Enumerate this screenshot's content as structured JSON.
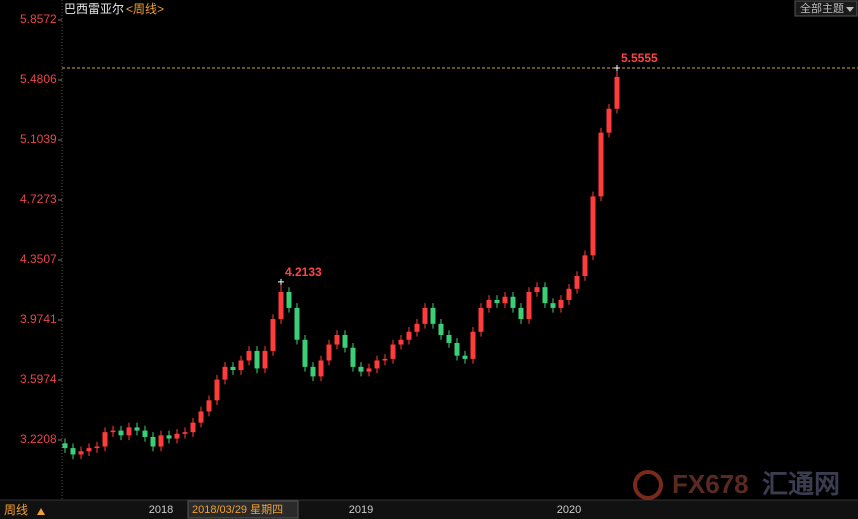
{
  "chart_data": {
    "type": "candlestick",
    "title": "巴西雷亚尔",
    "subtitle": "<周线>",
    "button": "全部主题",
    "period_label": "周线",
    "cursor_label": "2018/03/29 星期四",
    "watermark": [
      "FX678",
      "汇通网"
    ],
    "up_color": "#ff3c3c",
    "down_color": "#3ccf78",
    "categories": [
      null,
      null,
      null,
      null,
      null,
      null,
      null,
      null,
      null,
      null,
      null,
      null,
      "2018",
      null,
      null,
      null,
      null,
      null,
      null,
      null,
      null,
      null,
      null,
      null,
      null,
      null,
      null,
      null,
      null,
      null,
      null,
      null,
      null,
      null,
      null,
      null,
      null,
      "2019",
      null,
      null,
      null,
      null,
      null,
      null,
      null,
      null,
      null,
      null,
      null,
      null,
      null,
      null,
      null,
      null,
      null,
      null,
      null,
      null,
      null,
      null,
      null,
      null,
      null,
      "2020",
      null,
      null,
      null,
      null,
      null,
      null
    ],
    "open": [
      3.2,
      3.17,
      3.13,
      3.15,
      3.17,
      3.18,
      3.27,
      3.28,
      3.25,
      3.3,
      3.28,
      3.24,
      3.18,
      3.25,
      3.23,
      3.26,
      3.27,
      3.33,
      3.4,
      3.47,
      3.6,
      3.68,
      3.66,
      3.72,
      3.78,
      3.67,
      3.78,
      3.98,
      4.15,
      4.05,
      3.85,
      3.68,
      3.62,
      3.72,
      3.82,
      3.88,
      3.8,
      3.68,
      3.65,
      3.67,
      3.72,
      3.73,
      3.82,
      3.85,
      3.9,
      3.95,
      4.05,
      3.95,
      3.88,
      3.83,
      3.75,
      3.73,
      3.9,
      4.05,
      4.1,
      4.08,
      4.12,
      4.05,
      3.98,
      4.15,
      4.18,
      4.08,
      4.05,
      4.1,
      4.17,
      4.25,
      4.38,
      4.75,
      5.15,
      5.3
    ],
    "high": [
      3.23,
      3.2,
      3.18,
      3.2,
      3.21,
      3.3,
      3.31,
      3.31,
      3.33,
      3.33,
      3.31,
      3.27,
      3.28,
      3.28,
      3.29,
      3.3,
      3.36,
      3.43,
      3.5,
      3.63,
      3.71,
      3.71,
      3.75,
      3.81,
      3.81,
      3.81,
      4.01,
      4.2133,
      4.18,
      4.08,
      3.88,
      3.71,
      3.75,
      3.85,
      3.91,
      3.91,
      3.83,
      3.71,
      3.7,
      3.75,
      3.76,
      3.85,
      3.88,
      3.93,
      3.98,
      4.08,
      4.08,
      3.98,
      3.91,
      3.86,
      3.78,
      3.93,
      4.08,
      4.13,
      4.13,
      4.15,
      4.15,
      4.08,
      4.18,
      4.21,
      4.21,
      4.11,
      4.13,
      4.2,
      4.28,
      4.41,
      4.78,
      5.18,
      5.33,
      5.5555
    ],
    "low": [
      3.14,
      3.1,
      3.1,
      3.12,
      3.14,
      3.15,
      3.24,
      3.22,
      3.22,
      3.25,
      3.21,
      3.15,
      3.15,
      3.2,
      3.2,
      3.23,
      3.24,
      3.3,
      3.37,
      3.44,
      3.57,
      3.63,
      3.63,
      3.69,
      3.64,
      3.64,
      3.75,
      3.95,
      4.02,
      3.82,
      3.65,
      3.59,
      3.59,
      3.69,
      3.79,
      3.77,
      3.65,
      3.62,
      3.62,
      3.64,
      3.69,
      3.7,
      3.79,
      3.82,
      3.87,
      3.92,
      3.92,
      3.85,
      3.8,
      3.72,
      3.7,
      3.7,
      3.87,
      4.02,
      4.05,
      4.05,
      4.02,
      3.95,
      3.95,
      4.12,
      4.05,
      4.02,
      4.02,
      4.07,
      4.14,
      4.22,
      4.35,
      4.72,
      5.12,
      5.27
    ],
    "close": [
      3.17,
      3.13,
      3.15,
      3.17,
      3.18,
      3.27,
      3.28,
      3.25,
      3.3,
      3.28,
      3.24,
      3.18,
      3.25,
      3.23,
      3.26,
      3.27,
      3.33,
      3.4,
      3.47,
      3.6,
      3.68,
      3.66,
      3.72,
      3.78,
      3.67,
      3.78,
      3.98,
      4.15,
      4.05,
      3.85,
      3.68,
      3.62,
      3.72,
      3.82,
      3.88,
      3.8,
      3.68,
      3.65,
      3.67,
      3.72,
      3.73,
      3.82,
      3.85,
      3.9,
      3.95,
      4.05,
      3.95,
      3.88,
      3.83,
      3.75,
      3.73,
      3.9,
      4.05,
      4.1,
      4.08,
      4.12,
      4.05,
      3.98,
      4.15,
      4.18,
      4.08,
      4.05,
      4.1,
      4.17,
      4.25,
      4.38,
      4.75,
      5.15,
      5.3,
      5.5
    ],
    "ylim": [
      2.8442,
      5.9827
    ],
    "yticks": [
      3.2208,
      3.5974,
      3.9741,
      4.3507,
      4.7273,
      5.1039,
      5.4806,
      5.8572
    ]
  }
}
